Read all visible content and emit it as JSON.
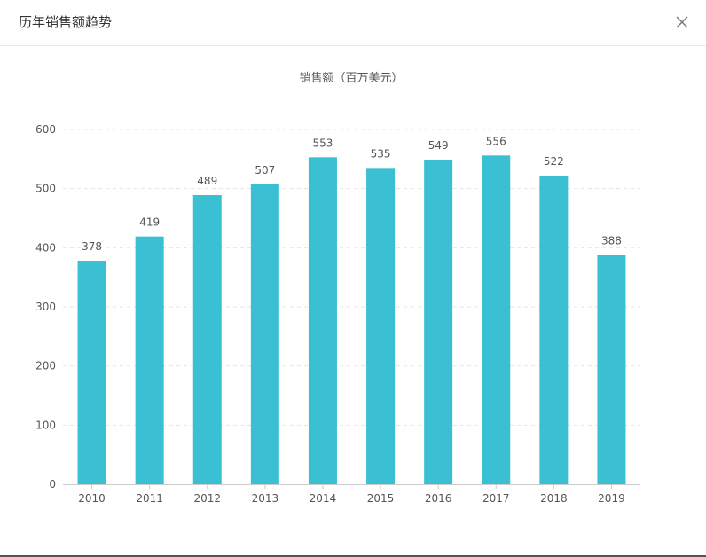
{
  "dialog": {
    "title": "历年销售额趋势",
    "close_icon": "close-icon"
  },
  "colors": {
    "bar": "#3bbfd3",
    "grid": "#e6e6e6",
    "axis": "#cccccc",
    "text": "#555555"
  },
  "chart_data": {
    "type": "bar",
    "title": "销售额（百万美元）",
    "categories": [
      "2010",
      "2011",
      "2012",
      "2013",
      "2014",
      "2015",
      "2016",
      "2017",
      "2018",
      "2019"
    ],
    "series": [
      {
        "values": [
          378,
          419,
          489,
          507,
          553,
          535,
          549,
          556,
          522,
          388
        ]
      }
    ],
    "ylim": [
      0,
      600
    ],
    "yticks": [
      0,
      100,
      200,
      300,
      400,
      500,
      600
    ],
    "grid": true,
    "data_labels": true
  }
}
